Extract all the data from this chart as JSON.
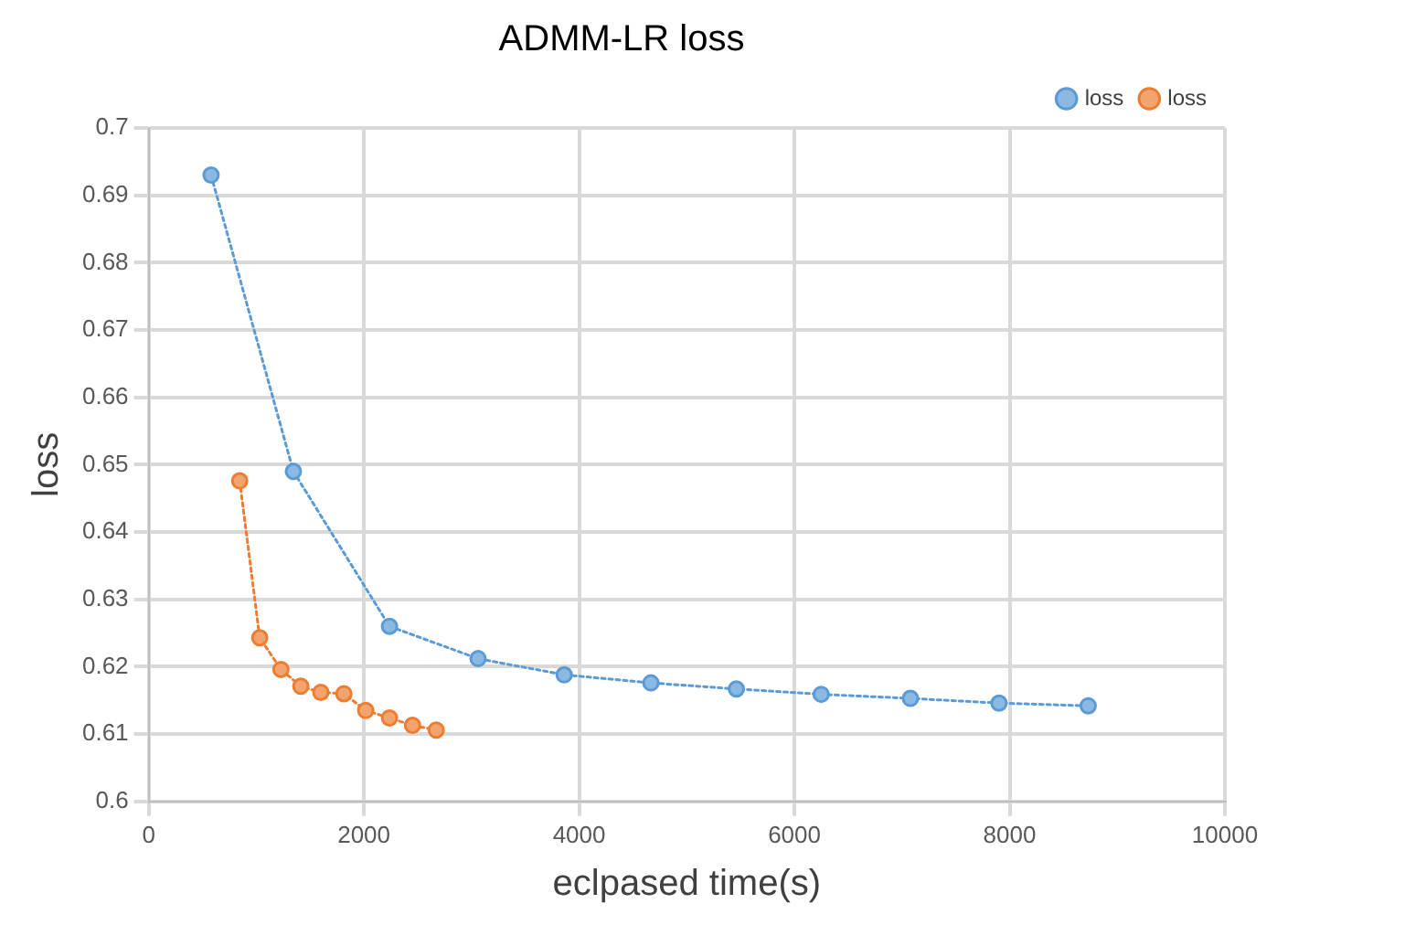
{
  "chart_data": {
    "type": "line",
    "title": "ADMM-LR loss",
    "xlabel": "eclpased time(s)",
    "ylabel": "loss",
    "xlim": [
      0,
      10000
    ],
    "xticks": [
      0,
      2000,
      4000,
      6000,
      8000,
      10000
    ],
    "ylim": [
      0.6,
      0.7
    ],
    "yticks": [
      0.6,
      0.61,
      0.62,
      0.63,
      0.64,
      0.65,
      0.66,
      0.67,
      0.68,
      0.69,
      0.7
    ],
    "grid": true,
    "legend": "top right",
    "marker": "circle",
    "line_style": "dotted",
    "series": [
      {
        "name": "loss",
        "color": "#5b9bd5",
        "x": [
          580,
          1345,
          2238,
          3061,
          3861,
          4667,
          5461,
          6249,
          7078,
          7901,
          8730
        ],
        "values": [
          0.693,
          0.649,
          0.626,
          0.6212,
          0.6188,
          0.6176,
          0.6167,
          0.6159,
          0.6153,
          0.6146,
          0.6142
        ]
      },
      {
        "name": "loss",
        "color": "#ed7d31",
        "x": [
          846,
          1032,
          1229,
          1414,
          1600,
          1814,
          2017,
          2238,
          2452,
          2672
        ],
        "values": [
          0.6476,
          0.6243,
          0.6196,
          0.6171,
          0.6162,
          0.616,
          0.6135,
          0.6124,
          0.6113,
          0.6106
        ]
      }
    ]
  }
}
